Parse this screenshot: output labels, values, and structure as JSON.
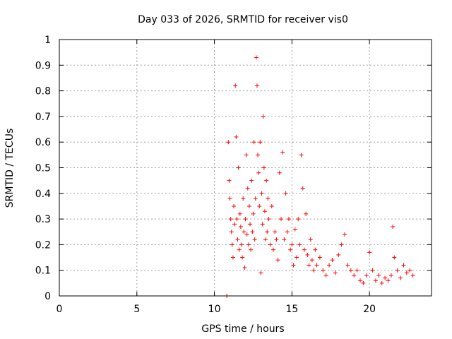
{
  "chart_data": {
    "type": "scatter",
    "title": "Day 033 of 2026, SRMTID for receiver vis0",
    "xlabel": "GPS time / hours",
    "ylabel": "SRMTID / TECUs",
    "xlim": [
      0,
      24
    ],
    "ylim": [
      0,
      1
    ],
    "xticks": [
      "0",
      "5",
      "10",
      "15",
      "20"
    ],
    "yticks": [
      "0",
      "0.1",
      "0.2",
      "0.3",
      "0.4",
      "0.5",
      "0.6",
      "0.7",
      "0.8",
      "0.9",
      "1"
    ],
    "grid": true,
    "marker": "plus",
    "color": "#ff0000",
    "series": [
      {
        "name": "vis0",
        "x": [
          10.8,
          10.9,
          10.95,
          11.0,
          11.05,
          11.1,
          11.15,
          11.2,
          11.25,
          11.3,
          11.35,
          11.4,
          11.45,
          11.5,
          11.55,
          11.6,
          11.65,
          11.7,
          11.75,
          11.8,
          11.85,
          11.9,
          11.95,
          12.0,
          12.05,
          12.1,
          12.15,
          12.2,
          12.25,
          12.3,
          12.35,
          12.4,
          12.45,
          12.5,
          12.55,
          12.6,
          12.65,
          12.7,
          12.75,
          12.8,
          12.85,
          12.9,
          12.95,
          13.0,
          13.05,
          13.1,
          13.15,
          13.2,
          13.25,
          13.3,
          13.35,
          13.4,
          13.45,
          13.5,
          13.6,
          13.7,
          13.8,
          13.9,
          14.0,
          14.1,
          14.2,
          14.3,
          14.4,
          14.5,
          14.6,
          14.7,
          14.8,
          14.9,
          15.0,
          15.1,
          15.2,
          15.3,
          15.4,
          15.5,
          15.6,
          15.7,
          15.8,
          15.9,
          16.0,
          16.1,
          16.2,
          16.3,
          16.4,
          16.5,
          16.6,
          16.8,
          17.0,
          17.2,
          17.4,
          17.6,
          17.8,
          18.0,
          18.2,
          18.4,
          18.6,
          18.8,
          19.0,
          19.2,
          19.4,
          19.6,
          19.8,
          20.0,
          20.2,
          20.4,
          20.6,
          20.8,
          21.0,
          21.2,
          21.4,
          21.5,
          21.6,
          21.8,
          22.0,
          22.2,
          22.4,
          22.6,
          22.8
        ],
        "y": [
          0.0,
          0.6,
          0.45,
          0.38,
          0.3,
          0.25,
          0.2,
          0.15,
          0.35,
          0.28,
          0.82,
          0.62,
          0.3,
          0.22,
          0.5,
          0.18,
          0.32,
          0.27,
          0.2,
          0.15,
          0.38,
          0.25,
          0.11,
          0.3,
          0.55,
          0.24,
          0.42,
          0.2,
          0.35,
          0.28,
          0.18,
          0.45,
          0.25,
          0.32,
          0.6,
          0.22,
          0.38,
          0.93,
          0.82,
          0.55,
          0.48,
          0.35,
          0.6,
          0.09,
          0.4,
          0.28,
          0.7,
          0.5,
          0.33,
          0.22,
          0.45,
          0.25,
          0.38,
          0.3,
          0.2,
          0.35,
          0.18,
          0.25,
          0.22,
          0.14,
          0.48,
          0.3,
          0.56,
          0.22,
          0.4,
          0.25,
          0.3,
          0.18,
          0.2,
          0.12,
          0.26,
          0.15,
          0.3,
          0.2,
          0.55,
          0.42,
          0.18,
          0.32,
          0.16,
          0.12,
          0.22,
          0.14,
          0.1,
          0.18,
          0.12,
          0.15,
          0.1,
          0.08,
          0.12,
          0.14,
          0.09,
          0.16,
          0.2,
          0.24,
          0.12,
          0.1,
          0.08,
          0.1,
          0.06,
          0.05,
          0.08,
          0.17,
          0.1,
          0.06,
          0.08,
          0.05,
          0.07,
          0.06,
          0.08,
          0.27,
          0.15,
          0.1,
          0.07,
          0.12,
          0.09,
          0.1,
          0.08
        ]
      }
    ]
  }
}
